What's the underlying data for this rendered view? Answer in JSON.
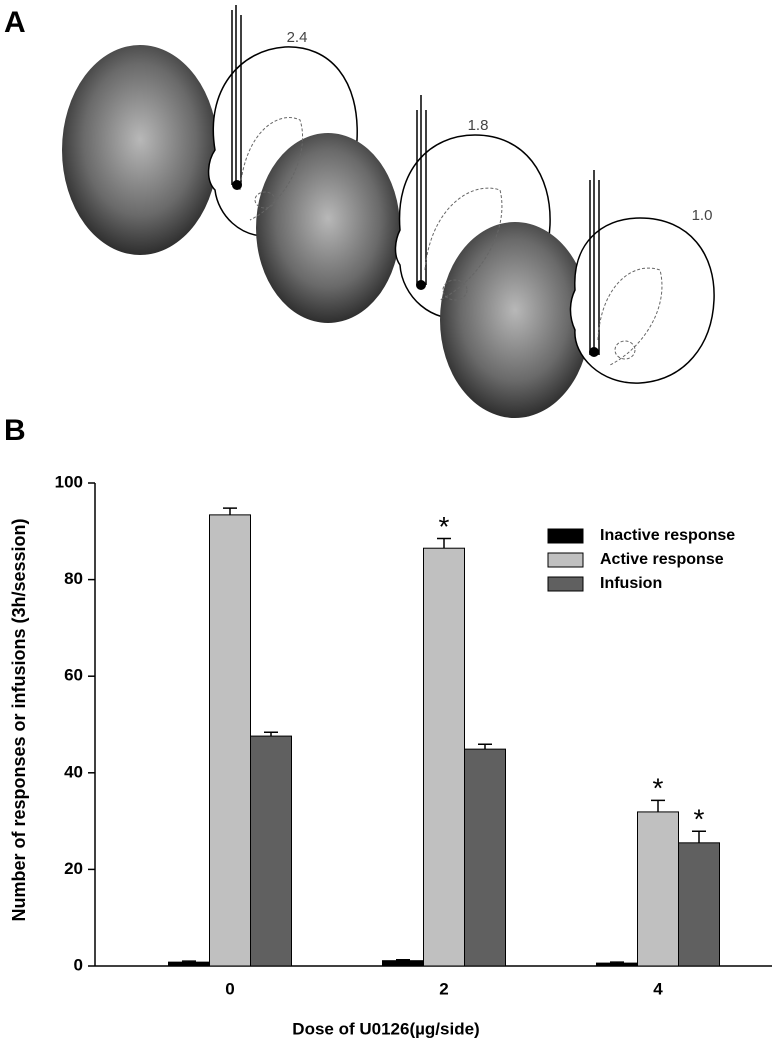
{
  "panel_a": {
    "label": "A",
    "section_labels": [
      "2.4",
      "1.8",
      "1.0"
    ]
  },
  "chart_data": {
    "type": "bar",
    "panel_label": "B",
    "x_label": "Dose of U0126(µg/side)",
    "y_label": "Number of responses or infusions (3h/session)",
    "categories": [
      "0",
      "2",
      "4"
    ],
    "series": [
      {
        "name": "Inactive response",
        "color": "#000000",
        "values": [
          0.8,
          1.1,
          0.6
        ],
        "errors": [
          0.2,
          0.2,
          0.2
        ],
        "markers": [
          null,
          null,
          null
        ]
      },
      {
        "name": "Active response",
        "color": "#c0c0c0",
        "values": [
          93.4,
          86.5,
          31.9
        ],
        "errors": [
          1.4,
          2.0,
          2.4
        ],
        "markers": [
          null,
          "*",
          "*"
        ]
      },
      {
        "name": "Infusion",
        "color": "#606060",
        "values": [
          47.6,
          44.9,
          25.5
        ],
        "errors": [
          0.8,
          1.0,
          2.4
        ],
        "markers": [
          null,
          null,
          "*"
        ]
      }
    ],
    "ylim": [
      0,
      100
    ],
    "yticks": [
      0,
      20,
      40,
      60,
      80,
      100
    ],
    "legend": "upper right"
  }
}
